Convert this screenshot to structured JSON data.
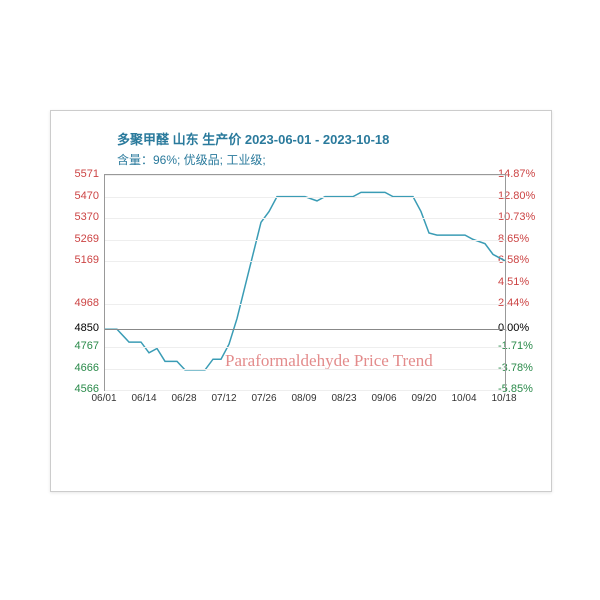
{
  "title_line1": "多聚甲醛 山东 生产价 2023-06-01 - 2023-10-18",
  "title_line2": "含量：96%; 优级品; 工业级;",
  "title_color": "#2a7a9c",
  "watermark": "Paraformaldehyde Price Trend",
  "watermark_color": "#e38b8b",
  "chart": {
    "type": "line",
    "line_color": "#3a9cb5",
    "line_width": 1.5,
    "plot_border_color": "#999999",
    "grid_color": "#eeeeee",
    "zero_line_color": "#888888",
    "background_color": "#ffffff",
    "left_axis": {
      "min": 4566,
      "max": 5571,
      "baseline": 4850,
      "ticks": [
        {
          "v": 5571,
          "label": "5571",
          "color": "#c44"
        },
        {
          "v": 5470,
          "label": "5470",
          "color": "#c44"
        },
        {
          "v": 5370,
          "label": "5370",
          "color": "#c44"
        },
        {
          "v": 5269,
          "label": "5269",
          "color": "#c44"
        },
        {
          "v": 5169,
          "label": "5169",
          "color": "#c44"
        },
        {
          "v": 4968,
          "label": "4968",
          "color": "#c44"
        },
        {
          "v": 4850,
          "label": "4850",
          "color": "#000"
        },
        {
          "v": 4767,
          "label": "4767",
          "color": "#2a8a4a"
        },
        {
          "v": 4666,
          "label": "4666",
          "color": "#2a8a4a"
        },
        {
          "v": 4566,
          "label": "4566",
          "color": "#2a8a4a"
        }
      ]
    },
    "right_axis": {
      "ticks": [
        {
          "v": 5571,
          "label": "14.87%",
          "color": "#c44"
        },
        {
          "v": 5470,
          "label": "12.80%",
          "color": "#c44"
        },
        {
          "v": 5370,
          "label": "10.73%",
          "color": "#c44"
        },
        {
          "v": 5269,
          "label": "8.65%",
          "color": "#c44"
        },
        {
          "v": 5169,
          "label": "6.58%",
          "color": "#c44"
        },
        {
          "v": 5068,
          "label": "4.51%",
          "color": "#c44"
        },
        {
          "v": 4968,
          "label": "2.44%",
          "color": "#c44"
        },
        {
          "v": 4850,
          "label": "0.00%",
          "color": "#000"
        },
        {
          "v": 4767,
          "label": "-1.71%",
          "color": "#2a8a4a"
        },
        {
          "v": 4666,
          "label": "-3.78%",
          "color": "#2a8a4a"
        },
        {
          "v": 4566,
          "label": "-5.85%",
          "color": "#2a8a4a"
        }
      ]
    },
    "x_axis": {
      "labels": [
        "06/01",
        "06/14",
        "06/28",
        "07/12",
        "07/26",
        "08/09",
        "08/23",
        "09/06",
        "09/20",
        "10/04",
        "10/18"
      ]
    },
    "series": [
      {
        "x": 0.0,
        "y": 4850
      },
      {
        "x": 0.03,
        "y": 4850
      },
      {
        "x": 0.06,
        "y": 4790
      },
      {
        "x": 0.09,
        "y": 4790
      },
      {
        "x": 0.11,
        "y": 4740
      },
      {
        "x": 0.13,
        "y": 4760
      },
      {
        "x": 0.15,
        "y": 4700
      },
      {
        "x": 0.18,
        "y": 4700
      },
      {
        "x": 0.2,
        "y": 4660
      },
      {
        "x": 0.23,
        "y": 4660
      },
      {
        "x": 0.25,
        "y": 4660
      },
      {
        "x": 0.27,
        "y": 4710
      },
      {
        "x": 0.29,
        "y": 4710
      },
      {
        "x": 0.31,
        "y": 4780
      },
      {
        "x": 0.33,
        "y": 4900
      },
      {
        "x": 0.35,
        "y": 5050
      },
      {
        "x": 0.37,
        "y": 5200
      },
      {
        "x": 0.39,
        "y": 5350
      },
      {
        "x": 0.41,
        "y": 5400
      },
      {
        "x": 0.43,
        "y": 5470
      },
      {
        "x": 0.5,
        "y": 5470
      },
      {
        "x": 0.53,
        "y": 5450
      },
      {
        "x": 0.55,
        "y": 5470
      },
      {
        "x": 0.62,
        "y": 5470
      },
      {
        "x": 0.64,
        "y": 5490
      },
      {
        "x": 0.7,
        "y": 5490
      },
      {
        "x": 0.72,
        "y": 5470
      },
      {
        "x": 0.77,
        "y": 5470
      },
      {
        "x": 0.79,
        "y": 5400
      },
      {
        "x": 0.81,
        "y": 5300
      },
      {
        "x": 0.83,
        "y": 5290
      },
      {
        "x": 0.9,
        "y": 5290
      },
      {
        "x": 0.92,
        "y": 5270
      },
      {
        "x": 0.95,
        "y": 5250
      },
      {
        "x": 0.97,
        "y": 5200
      },
      {
        "x": 1.0,
        "y": 5170
      }
    ]
  }
}
